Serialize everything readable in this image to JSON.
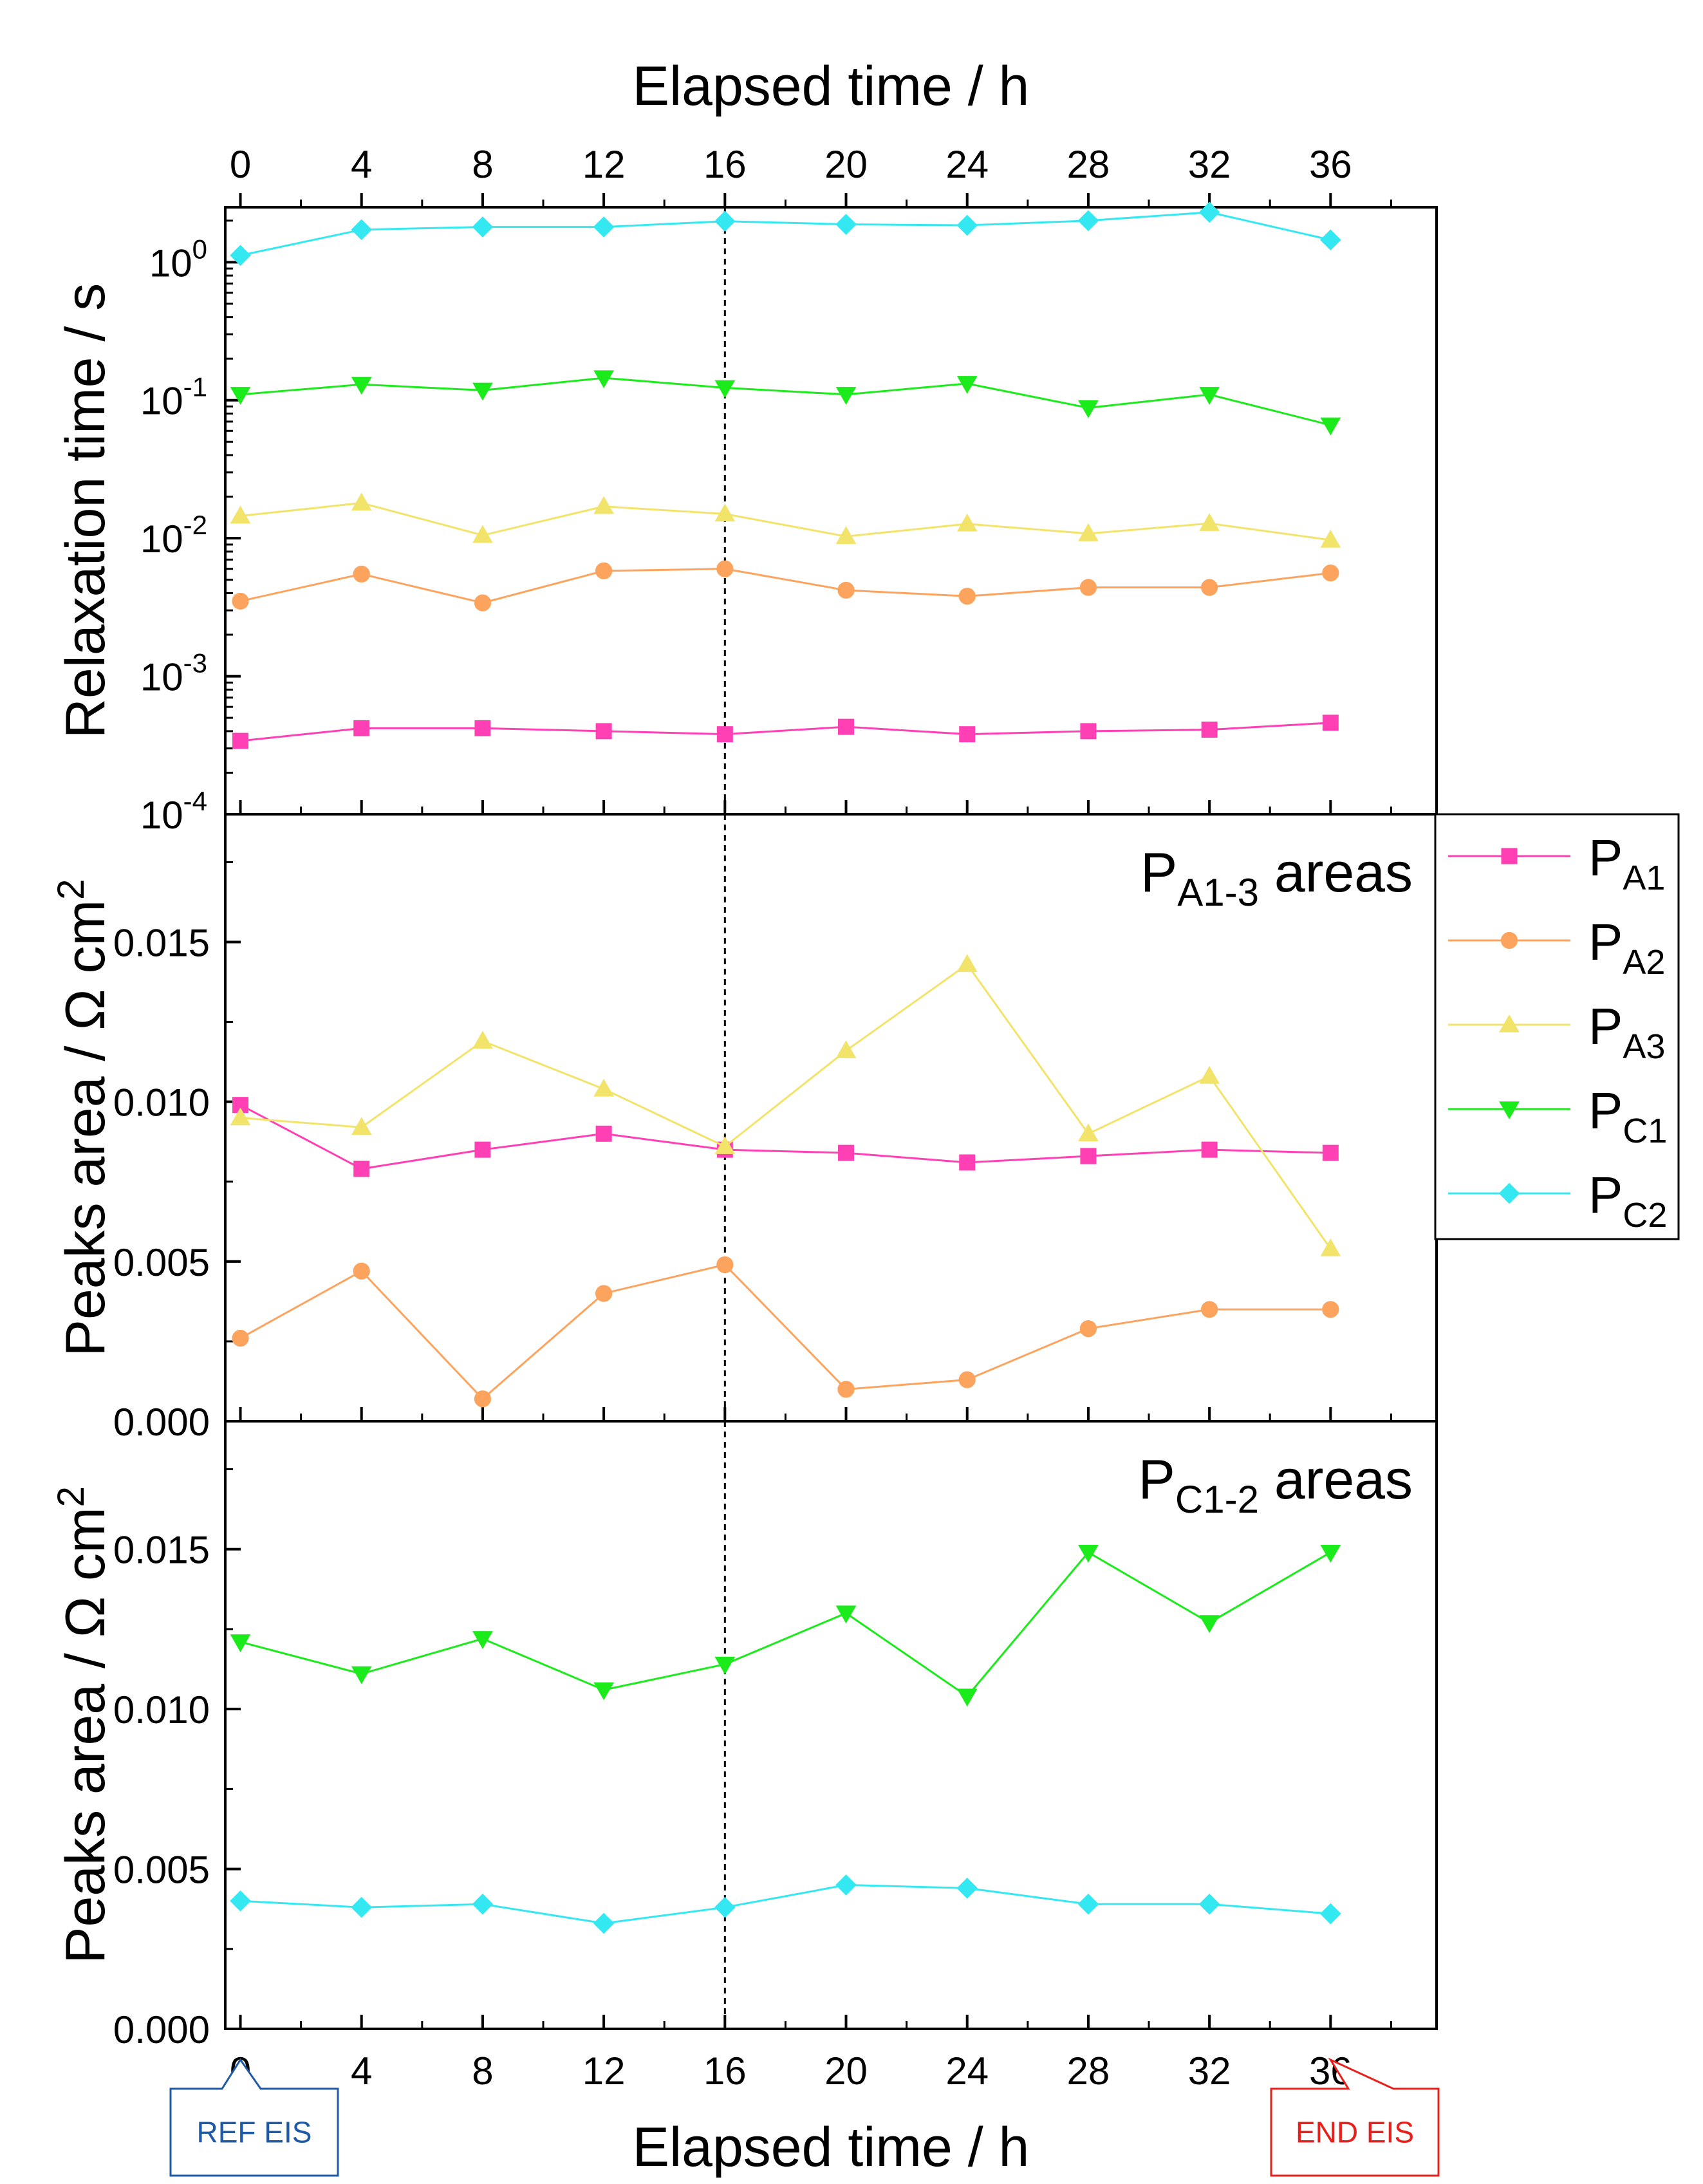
{
  "chart_data": {
    "type": "line",
    "x_axis": {
      "title": "Elapsed time / h",
      "ticks": [
        0,
        4,
        8,
        12,
        16,
        20,
        24,
        28,
        32,
        36
      ],
      "tick_labels": [
        "0",
        "4",
        "8",
        "12",
        "16",
        "20",
        "24",
        "28",
        "32",
        "36"
      ],
      "range": [
        -0.5,
        39.5
      ]
    },
    "marker_line": {
      "x": 16,
      "style": "dashed"
    },
    "legend": {
      "entries": [
        {
          "base": "P",
          "sub": "A1",
          "color": "#ff3fb4",
          "marker": "square"
        },
        {
          "base": "P",
          "sub": "A2",
          "color": "#fca35e",
          "marker": "circle"
        },
        {
          "base": "P",
          "sub": "A3",
          "color": "#f2e36a",
          "marker": "triangle-up"
        },
        {
          "base": "P",
          "sub": "C1",
          "color": "#1bea1b",
          "marker": "triangle-down"
        },
        {
          "base": "P",
          "sub": "C2",
          "color": "#34e8f2",
          "marker": "diamond"
        }
      ]
    },
    "panels": [
      {
        "name": "relaxation",
        "ylabel": "Relaxation time / s",
        "yscale": "log",
        "ylim": [
          0.0001,
          2.5
        ],
        "ytick_labels": [
          {
            "value": 1,
            "base": "10",
            "exp": "0"
          },
          {
            "value": 0.1,
            "base": "10",
            "exp": "-1"
          },
          {
            "value": 0.01,
            "base": "10",
            "exp": "-2"
          },
          {
            "value": 0.001,
            "base": "10",
            "exp": "-3"
          },
          {
            "value": 0.0001,
            "base": "10",
            "exp": "-4"
          }
        ],
        "series": [
          {
            "name": "PA1",
            "legend_index": 0,
            "values": [
              0.00034,
              0.00042,
              0.00042,
              0.0004,
              0.00038,
              0.00043,
              0.00038,
              0.0004,
              0.00041,
              0.00046
            ]
          },
          {
            "name": "PA2",
            "legend_index": 1,
            "values": [
              0.0035,
              0.0055,
              0.0034,
              0.0058,
              0.006,
              0.0042,
              0.0038,
              0.0044,
              0.0044,
              0.0056
            ]
          },
          {
            "name": "PA3",
            "legend_index": 2,
            "values": [
              0.0145,
              0.018,
              0.0105,
              0.017,
              0.015,
              0.0103,
              0.0127,
              0.0108,
              0.0128,
              0.0097
            ]
          },
          {
            "name": "PC1",
            "legend_index": 3,
            "values": [
              0.11,
              0.13,
              0.118,
              0.145,
              0.123,
              0.11,
              0.132,
              0.088,
              0.11,
              0.066
            ]
          },
          {
            "name": "PC2",
            "legend_index": 4,
            "values": [
              1.12,
              1.72,
              1.8,
              1.8,
              1.98,
              1.88,
              1.85,
              2.0,
              2.3,
              1.45
            ]
          }
        ]
      },
      {
        "name": "anodic-areas",
        "ylabel": "Peaks area / Ω cm²",
        "ylabel_base": "Peaks area / Ω cm",
        "ylabel_sup": "2",
        "ylim": [
          0,
          0.019
        ],
        "yticks": [
          0,
          0.005,
          0.01,
          0.015
        ],
        "ytick_labels": [
          "0.000",
          "0.005",
          "0.010",
          "0.015"
        ],
        "annotation": {
          "base": "P",
          "sub": "A1-3",
          "suffix": " areas"
        },
        "series": [
          {
            "name": "PA1",
            "legend_index": 0,
            "values": [
              0.0099,
              0.0079,
              0.0085,
              0.009,
              0.0085,
              0.0084,
              0.0081,
              0.0083,
              0.0085,
              0.0084
            ]
          },
          {
            "name": "PA2",
            "legend_index": 1,
            "values": [
              0.0026,
              0.0047,
              0.0007,
              0.004,
              0.0049,
              0.001,
              0.0013,
              0.0029,
              0.0035,
              0.0035
            ]
          },
          {
            "name": "PA3",
            "legend_index": 2,
            "values": [
              0.0095,
              0.0092,
              0.0119,
              0.0104,
              0.0086,
              0.0116,
              0.0143,
              0.009,
              0.0108,
              0.0054
            ]
          }
        ]
      },
      {
        "name": "cathodic-areas",
        "ylabel": "Peaks area / Ω cm²",
        "ylabel_base": "Peaks area / Ω cm",
        "ylabel_sup": "2",
        "ylim": [
          0,
          0.019
        ],
        "yticks": [
          0,
          0.005,
          0.01,
          0.015
        ],
        "ytick_labels": [
          "0.000",
          "0.005",
          "0.010",
          "0.015"
        ],
        "annotation": {
          "base": "P",
          "sub": "C1-2",
          "suffix": " areas"
        },
        "series": [
          {
            "name": "PC1",
            "legend_index": 3,
            "values": [
              0.0121,
              0.0111,
              0.0122,
              0.0106,
              0.0114,
              0.013,
              0.0104,
              0.0149,
              0.0127,
              0.0149
            ]
          },
          {
            "name": "PC2",
            "legend_index": 4,
            "values": [
              0.004,
              0.0038,
              0.0039,
              0.0033,
              0.0038,
              0.0045,
              0.0044,
              0.0039,
              0.0039,
              0.0036
            ]
          }
        ]
      }
    ],
    "callouts": [
      {
        "text": "REF EIS",
        "x": 0,
        "color": "#1f5aa6"
      },
      {
        "text": "END EIS",
        "x": 36,
        "color": "#e8201c"
      }
    ]
  }
}
